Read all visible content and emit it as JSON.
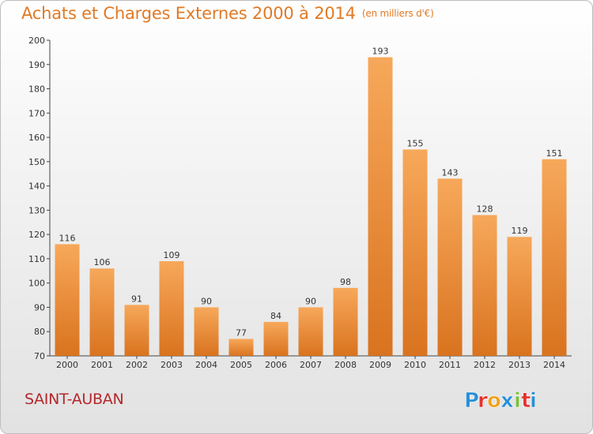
{
  "header": {
    "title": "Achats et Charges Externes 2000 à 2014",
    "unit": "(en milliers d'€)"
  },
  "footer": {
    "commune": "SAINT-AUBAN",
    "brand": "Proxiti"
  },
  "colors": {
    "title": "#e07a26",
    "commune": "#b4282d",
    "bar_light": "#f7a85a",
    "bar_dark": "#d9731f",
    "brand": [
      "#2b8fd6",
      "#e5312f",
      "#f0a21c",
      "#2b8fd6",
      "#7bbf3a",
      "#e5312f",
      "#2b8fd6"
    ]
  },
  "chart_data": {
    "type": "bar",
    "title": "Achats et Charges Externes 2000 à 2014",
    "subtitle": "(en milliers d'€)",
    "categories": [
      "2000",
      "2001",
      "2002",
      "2003",
      "2004",
      "2005",
      "2006",
      "2007",
      "2008",
      "2009",
      "2010",
      "2011",
      "2012",
      "2013",
      "2014"
    ],
    "values": [
      116,
      106,
      91,
      109,
      90,
      77,
      84,
      90,
      98,
      193,
      155,
      143,
      128,
      119,
      151
    ],
    "ylim": [
      70,
      200
    ],
    "yticks": [
      70,
      80,
      90,
      100,
      110,
      120,
      130,
      140,
      150,
      160,
      170,
      180,
      190,
      200
    ],
    "grid": false,
    "data_labels": true
  }
}
